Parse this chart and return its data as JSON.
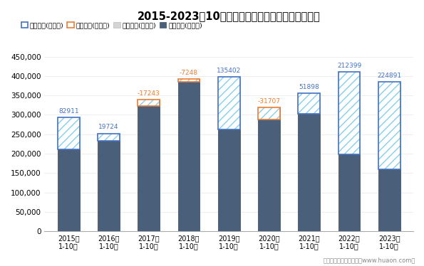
{
  "title": "2015-2023年10月湖南省外商投资企业进出口差额图",
  "categories": [
    "2015年\n1-10月",
    "2016年\n1-10月",
    "2017年\n1-10月",
    "2018年\n1-10月",
    "2019年\n1-10月",
    "2020年\n1-10月",
    "2021年\n1-10月",
    "2022年\n1-10月",
    "2023年\n1-10月"
  ],
  "export_total": [
    293000,
    252000,
    322000,
    385000,
    398000,
    287000,
    355000,
    410000,
    385000
  ],
  "import_total": [
    210089,
    232276,
    339243,
    392248,
    262598,
    318707,
    303102,
    197601,
    160109
  ],
  "surplus": [
    82911,
    19724,
    null,
    null,
    135402,
    null,
    51898,
    212399,
    224891
  ],
  "deficit": [
    null,
    null,
    -17243,
    -7248,
    null,
    -31707,
    null,
    null,
    null
  ],
  "surplus_color": "#4472c4",
  "deficit_color": "#ed7d31",
  "export_color": "#d4d4d4",
  "import_color": "#4a5f7a",
  "hatch_color": "#87ceeb",
  "legend_labels": [
    "贸易顺差(万美元)",
    "贸易逆差(万美元)",
    "出口总额(万美元)",
    "进口总额(万美元)"
  ],
  "ylim": [
    0,
    470000
  ],
  "yticks": [
    0,
    50000,
    100000,
    150000,
    200000,
    250000,
    300000,
    350000,
    400000,
    450000
  ],
  "footnote": "制图：华经产业研究院（www.huaon.com）",
  "background_color": "#ffffff"
}
